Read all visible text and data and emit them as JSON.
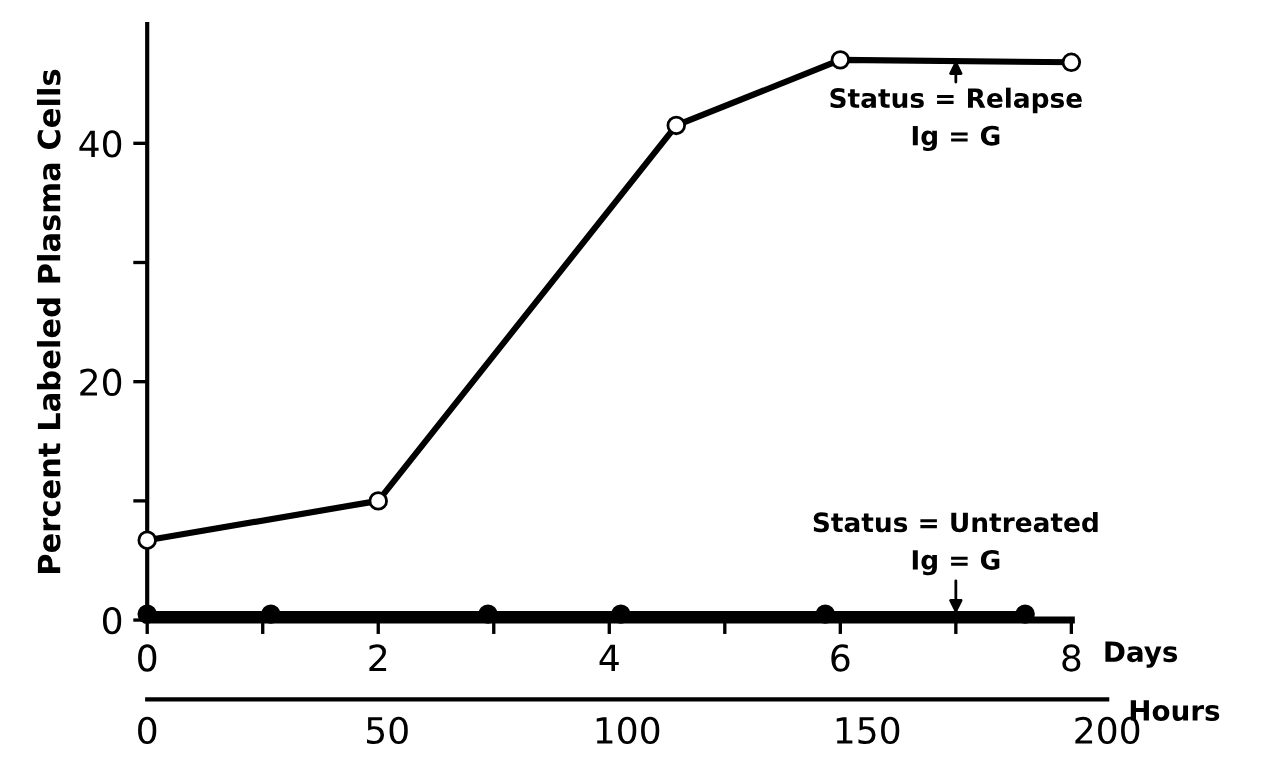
{
  "chart_data": {
    "type": "line",
    "ylabel": "Percent Labeled Plasma Cells",
    "xlabel": "Days",
    "x2label": "Hours",
    "xlim": [
      0,
      8
    ],
    "xticks": [
      0,
      {
        "value": 1,
        "label": null
      },
      2,
      {
        "value": 3,
        "label": null
      },
      4,
      {
        "value": 5,
        "label": null
      },
      6,
      {
        "value": 7,
        "label": null
      },
      8
    ],
    "x2lim": [
      0,
      200
    ],
    "x2ticks": [
      0,
      50,
      100,
      150,
      200
    ],
    "ylim": [
      0,
      50
    ],
    "yticks": [
      0,
      {
        "value": 10,
        "label": null
      },
      20,
      {
        "value": 30,
        "label": null
      },
      40
    ],
    "grid": false,
    "legend": false,
    "marker": "circle",
    "line_style": "solid",
    "series": [
      {
        "color": "#000000",
        "x": [
          0,
          2,
          4.58,
          6,
          8
        ],
        "values": [
          6.7,
          10,
          41.5,
          47,
          46.8
        ]
      },
      {
        "color": "#000000",
        "x": [
          0,
          1.07,
          2.95,
          4.1,
          5.87,
          7.6
        ],
        "values": [
          0.5,
          0.5,
          0.5,
          0.5,
          0.5,
          0.5
        ]
      }
    ],
    "annotations": [
      {
        "text": "Status = Relapse\nIg = G",
        "x": 7,
        "y": 47
      },
      {
        "text": "Status = Untreated\nIg = G",
        "x": 7,
        "y": 0.5
      }
    ]
  }
}
